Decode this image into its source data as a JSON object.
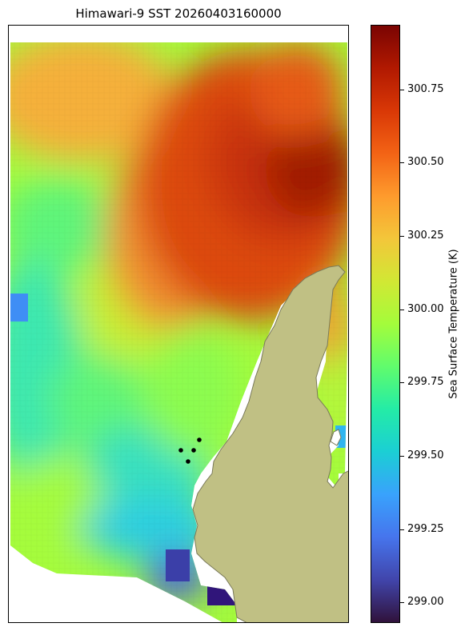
{
  "title": "Himawari-9 SST 20260403160000",
  "colorbar": {
    "label": "Sea Surface Temperature (K)",
    "min": 298.93,
    "max": 300.97,
    "ticks": [
      "299.00",
      "299.25",
      "299.50",
      "299.75",
      "300.00",
      "300.25",
      "300.50",
      "300.75"
    ],
    "tick_values": [
      299.0,
      299.25,
      299.5,
      299.75,
      300.0,
      300.25,
      300.5,
      300.75
    ],
    "colormap": "turbo"
  },
  "map": {
    "land_color": "#c0c084",
    "coast_color": "#7a7a5a",
    "marker_color": "#000000",
    "marker_count": 4
  }
}
